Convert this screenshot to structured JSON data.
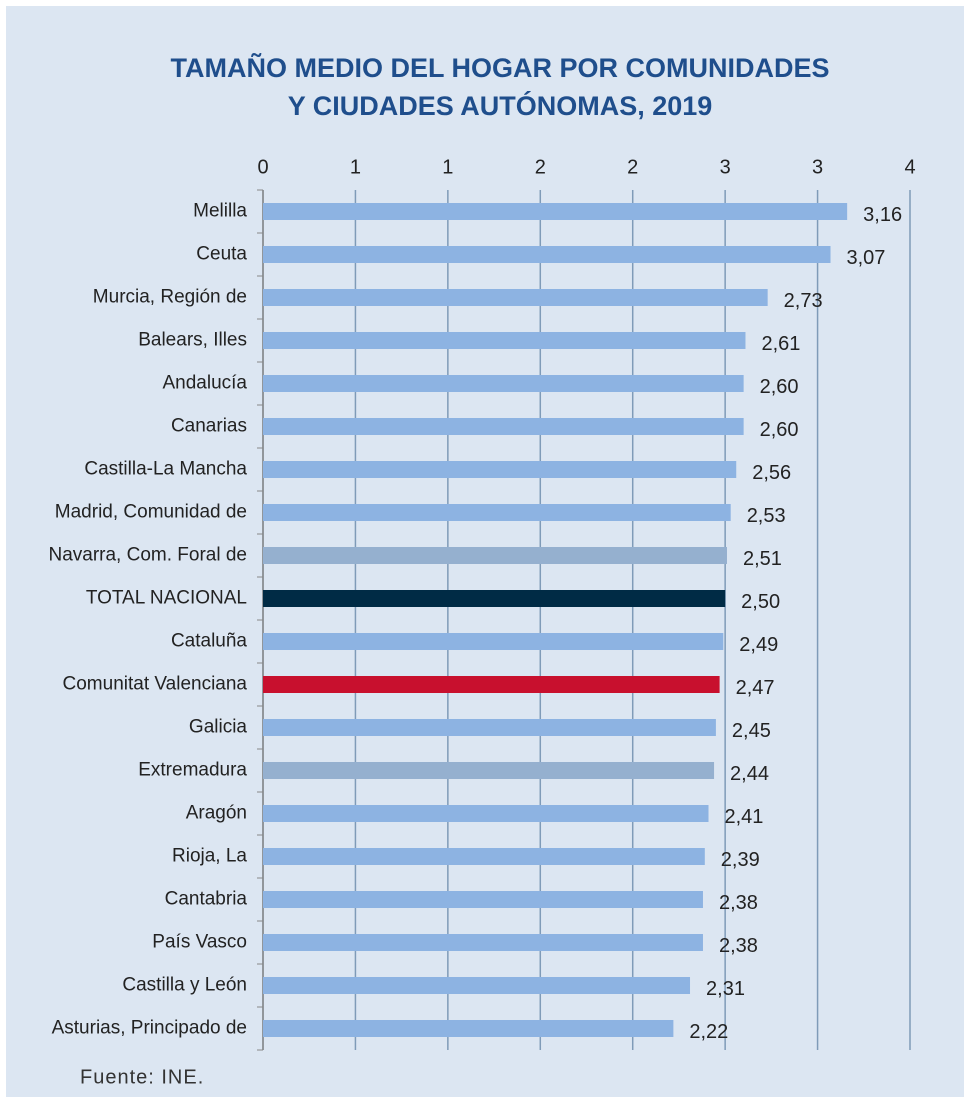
{
  "chart_data": {
    "type": "bar",
    "orientation": "horizontal",
    "title": "TAMAÑO MEDIO DEL HOGAR POR COMUNIDADES Y CIUDADES AUTÓNOMAS, 2019",
    "source": "Fuente: INE.",
    "categories": [
      "Melilla",
      "Ceuta",
      "Murcia, Región de",
      "Balears, Illes",
      "Andalucía",
      "Canarias",
      "Castilla-La Mancha",
      "Madrid, Comunidad de",
      "Navarra, Com. Foral de",
      "TOTAL NACIONAL",
      "Cataluña",
      "Comunitat Valenciana",
      "Galicia",
      "Extremadura",
      "Aragón",
      "Rioja, La",
      "Cantabria",
      "País Vasco",
      "Castilla y León",
      "Asturias, Principado de"
    ],
    "values": [
      3.16,
      3.07,
      2.73,
      2.61,
      2.6,
      2.6,
      2.56,
      2.53,
      2.51,
      2.5,
      2.49,
      2.47,
      2.45,
      2.44,
      2.41,
      2.39,
      2.38,
      2.38,
      2.31,
      2.22
    ],
    "value_labels": [
      "3,16",
      "3,07",
      "2,73",
      "2,61",
      "2,60",
      "2,60",
      "2,56",
      "2,53",
      "2,51",
      "2,50",
      "2,49",
      "2,47",
      "2,45",
      "2,44",
      "2,41",
      "2,39",
      "2,38",
      "2,38",
      "2,31",
      "2,22"
    ],
    "colors": [
      "#8db3e2",
      "#8db3e2",
      "#8db3e2",
      "#8db3e2",
      "#8db3e2",
      "#8db3e2",
      "#8db3e2",
      "#8db3e2",
      "#95b0cf",
      "#002b45",
      "#8db3e2",
      "#c8102e",
      "#8db3e2",
      "#95b0cf",
      "#8db3e2",
      "#8db3e2",
      "#8db3e2",
      "#8db3e2",
      "#8db3e2",
      "#8db3e2"
    ],
    "xlim": [
      0,
      3.5
    ],
    "xticks": [
      0,
      {
        "value": 0.5,
        "label": "1"
      },
      1,
      {
        "value": 1.5,
        "label": "2"
      },
      2,
      {
        "value": 2.5,
        "label": "3"
      },
      3,
      {
        "value": 3.5,
        "label": "4"
      }
    ],
    "grid": true
  }
}
